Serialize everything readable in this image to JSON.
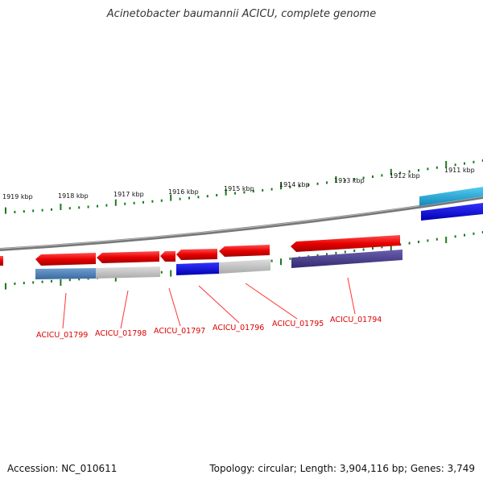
{
  "title": "Acinetobacter baumannii ACICU, complete genome",
  "accession": "Accession: NC_010611",
  "topology": "Topology: circular; Length: 3,904,116 bp; Genes: 3,749",
  "kbp_labels": [
    {
      "name": "kbp-label-1919",
      "text": "1919 kbp"
    },
    {
      "name": "kbp-label-1918",
      "text": "1918 kbp"
    },
    {
      "name": "kbp-label-1917",
      "text": "1917 kbp"
    },
    {
      "name": "kbp-label-1916",
      "text": "1916 kbp"
    },
    {
      "name": "kbp-label-1915",
      "text": "1915 kbp"
    },
    {
      "name": "kbp-label-1914",
      "text": "1914 kbp"
    },
    {
      "name": "kbp-label-1913",
      "text": "1913 kbp"
    },
    {
      "name": "kbp-label-1912",
      "text": "1912 kbp"
    },
    {
      "name": "kbp-label-1911",
      "text": "1911 kbp"
    }
  ],
  "gene_labels": [
    {
      "name": "gene-label-acicu-01799",
      "text": "ACICU_01799"
    },
    {
      "name": "gene-label-acicu-01798",
      "text": "ACICU_01798"
    },
    {
      "name": "gene-label-acicu-01797",
      "text": "ACICU_01797"
    },
    {
      "name": "gene-label-acicu-01796",
      "text": "ACICU_01796"
    },
    {
      "name": "gene-label-acicu-01795",
      "text": "ACICU_01795"
    },
    {
      "name": "gene-label-acicu-01794",
      "text": "ACICU_01794"
    }
  ],
  "colors": {
    "backbone": "#777777",
    "gene": "#e80000",
    "tick": "#1a7a1a",
    "label_red": "#dd0000",
    "steelblue": "#4a7db8",
    "gray": "#c0c0c0",
    "blue": "#0000dd",
    "purple": "#4a3f8c",
    "cyan": "#22aadd"
  }
}
